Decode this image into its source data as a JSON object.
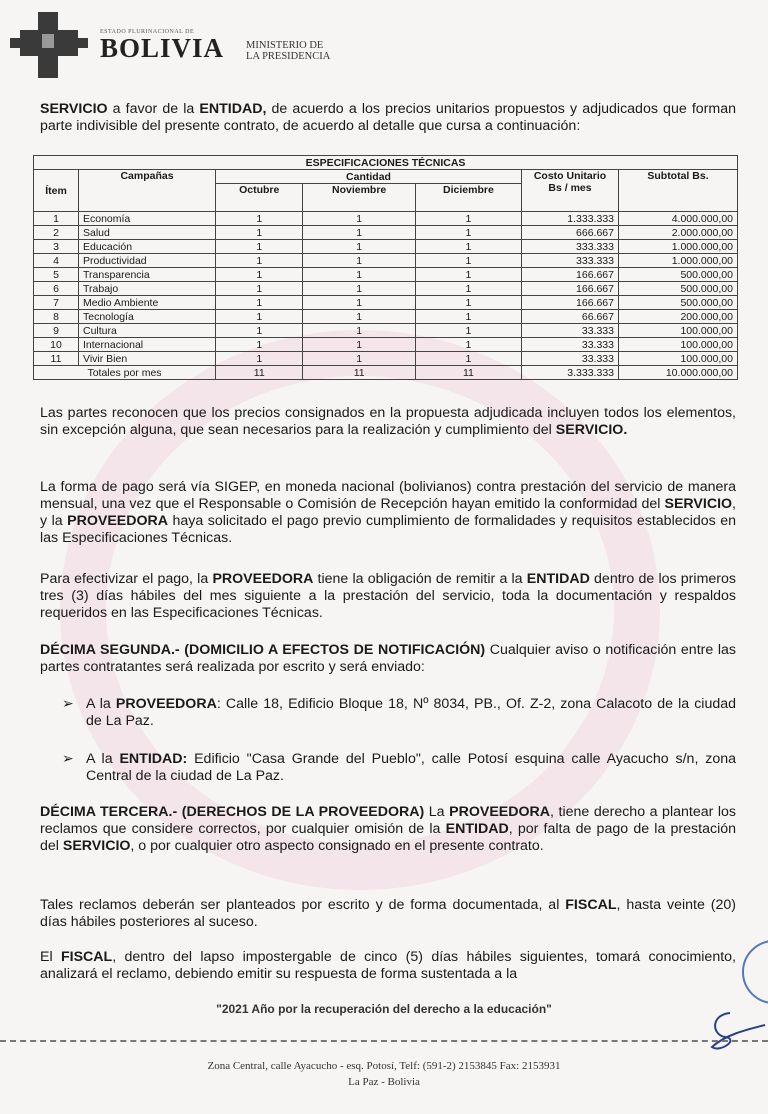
{
  "header": {
    "logo_small": "ESTADO PLURINACIONAL DE",
    "logo_big": "BOLIVIA",
    "ministry_line1": "MINISTERIO DE",
    "ministry_line2": "LA PRESIDENCIA"
  },
  "intro": [
    {
      "t": "SERVICIO",
      "b": true
    },
    {
      "t": " a favor de la "
    },
    {
      "t": "ENTIDAD,",
      "b": true
    },
    {
      "t": " de acuerdo a los precios unitarios propuestos y adjudicados que forman parte indivisible del presente contrato, de acuerdo al detalle que cursa a continuación:"
    }
  ],
  "table": {
    "title": "ESPECIFICACIONES TÉCNICAS",
    "headers": {
      "item": "Ítem",
      "campaign": "Campañas",
      "quantity": "Cantidad",
      "months": [
        "Octubre",
        "Noviembre",
        "Diciembre"
      ],
      "unit_cost": "Costo Unitario Bs / mes",
      "subtotal": "Subtotal Bs."
    },
    "rows": [
      [
        "1",
        "Economía",
        "1",
        "1",
        "1",
        "1.333.333",
        "4.000.000,00"
      ],
      [
        "2",
        "Salud",
        "1",
        "1",
        "1",
        "666.667",
        "2.000.000,00"
      ],
      [
        "3",
        "Educación",
        "1",
        "1",
        "1",
        "333.333",
        "1.000.000,00"
      ],
      [
        "4",
        "Productividad",
        "1",
        "1",
        "1",
        "333.333",
        "1.000.000,00"
      ],
      [
        "5",
        "Transparencia",
        "1",
        "1",
        "1",
        "166.667",
        "500.000,00"
      ],
      [
        "6",
        "Trabajo",
        "1",
        "1",
        "1",
        "166.667",
        "500.000,00"
      ],
      [
        "7",
        "Medio Ambiente",
        "1",
        "1",
        "1",
        "166.667",
        "500.000,00"
      ],
      [
        "8",
        "Tecnología",
        "1",
        "1",
        "1",
        "66.667",
        "200.000,00"
      ],
      [
        "9",
        "Cultura",
        "1",
        "1",
        "1",
        "33.333",
        "100.000,00"
      ],
      [
        "10",
        "Internacional",
        "1",
        "1",
        "1",
        "33.333",
        "100.000,00"
      ],
      [
        "11",
        "Vivir Bien",
        "1",
        "1",
        "1",
        "33.333",
        "100.000,00"
      ]
    ],
    "totals": [
      "Totales por mes",
      "11",
      "11",
      "11",
      "3.333.333",
      "10.000.000,00"
    ]
  },
  "paragraphs": [
    [
      {
        "t": "Las partes reconocen que los precios consignados en la propuesta adjudicada incluyen todos los elementos, sin excepción alguna, que sean necesarios para la realización y cumplimiento del "
      },
      {
        "t": "SERVICIO.",
        "b": true
      }
    ],
    [
      {
        "t": "La forma de pago será vía SIGEP, en moneda nacional (bolivianos) contra prestación del servicio de manera mensual, una vez que el Responsable o Comisión de Recepción hayan emitido la conformidad del "
      },
      {
        "t": "SERVICIO",
        "b": true
      },
      {
        "t": ", y la "
      },
      {
        "t": "PROVEEDORA",
        "b": true
      },
      {
        "t": " haya solicitado el pago previo cumplimiento de formalidades y requisitos establecidos en las Especificaciones Técnicas."
      }
    ],
    [
      {
        "t": "Para efectivizar el pago, la "
      },
      {
        "t": "PROVEEDORA",
        "b": true
      },
      {
        "t": " tiene la obligación de remitir a la "
      },
      {
        "t": "ENTIDAD",
        "b": true
      },
      {
        "t": " dentro de los primeros tres (3) días hábiles del mes siguiente a la prestación del servicio, toda la documentación y respaldos requeridos en las Especificaciones Técnicas."
      }
    ],
    [
      {
        "t": "DÉCIMA SEGUNDA.- (DOMICILIO A EFECTOS DE NOTIFICACIÓN)",
        "b": true
      },
      {
        "t": " Cualquier aviso o notificación entre las partes contratantes será realizada por escrito y será enviado:"
      }
    ]
  ],
  "bullets": [
    [
      {
        "t": "A la "
      },
      {
        "t": "PROVEEDORA",
        "b": true
      },
      {
        "t": ": Calle 18, Edificio Bloque 18, Nº 8034, PB., Of. Z-2, zona Calacoto de la ciudad de La Paz."
      }
    ],
    [
      {
        "t": "A la "
      },
      {
        "t": "ENTIDAD:",
        "b": true
      },
      {
        "t": " Edificio \"Casa Grande del Pueblo\", calle Potosí esquina calle Ayacucho s/n, zona Central de la ciudad de La Paz."
      }
    ]
  ],
  "bullet_marker": "➢",
  "paragraphs2": [
    [
      {
        "t": "DÉCIMA TERCERA.- (DERECHOS DE LA PROVEEDORA)",
        "b": true
      },
      {
        "t": " La "
      },
      {
        "t": "PROVEEDORA",
        "b": true
      },
      {
        "t": ", tiene derecho a plantear los reclamos que considere correctos, por cualquier omisión de la "
      },
      {
        "t": "ENTIDAD",
        "b": true
      },
      {
        "t": ", por falta de pago de la prestación del "
      },
      {
        "t": "SERVICIO",
        "b": true
      },
      {
        "t": ", o por cualquier otro aspecto consignado en el presente contrato."
      }
    ],
    [
      {
        "t": "Tales reclamos deberán ser planteados por escrito y de forma documentada, al "
      },
      {
        "t": "FISCAL",
        "b": true
      },
      {
        "t": ", hasta veinte (20) días hábiles posteriores al suceso."
      }
    ],
    [
      {
        "t": "El "
      },
      {
        "t": "FISCAL",
        "b": true
      },
      {
        "t": ", dentro del lapso impostergable de cinco (5) días hábiles siguientes, tomará conocimiento, analizará el reclamo, debiendo emitir su respuesta de forma sustentada a la"
      }
    ]
  ],
  "motto": "\"2021 Año por la recuperación del derecho a la educación\"",
  "footer": {
    "line1": "Zona Central, calle Ayacucho - esq. Potosí, Telf: (591-2) 2153845 Fax: 2153931",
    "line2": "La Paz - Bolivia"
  }
}
